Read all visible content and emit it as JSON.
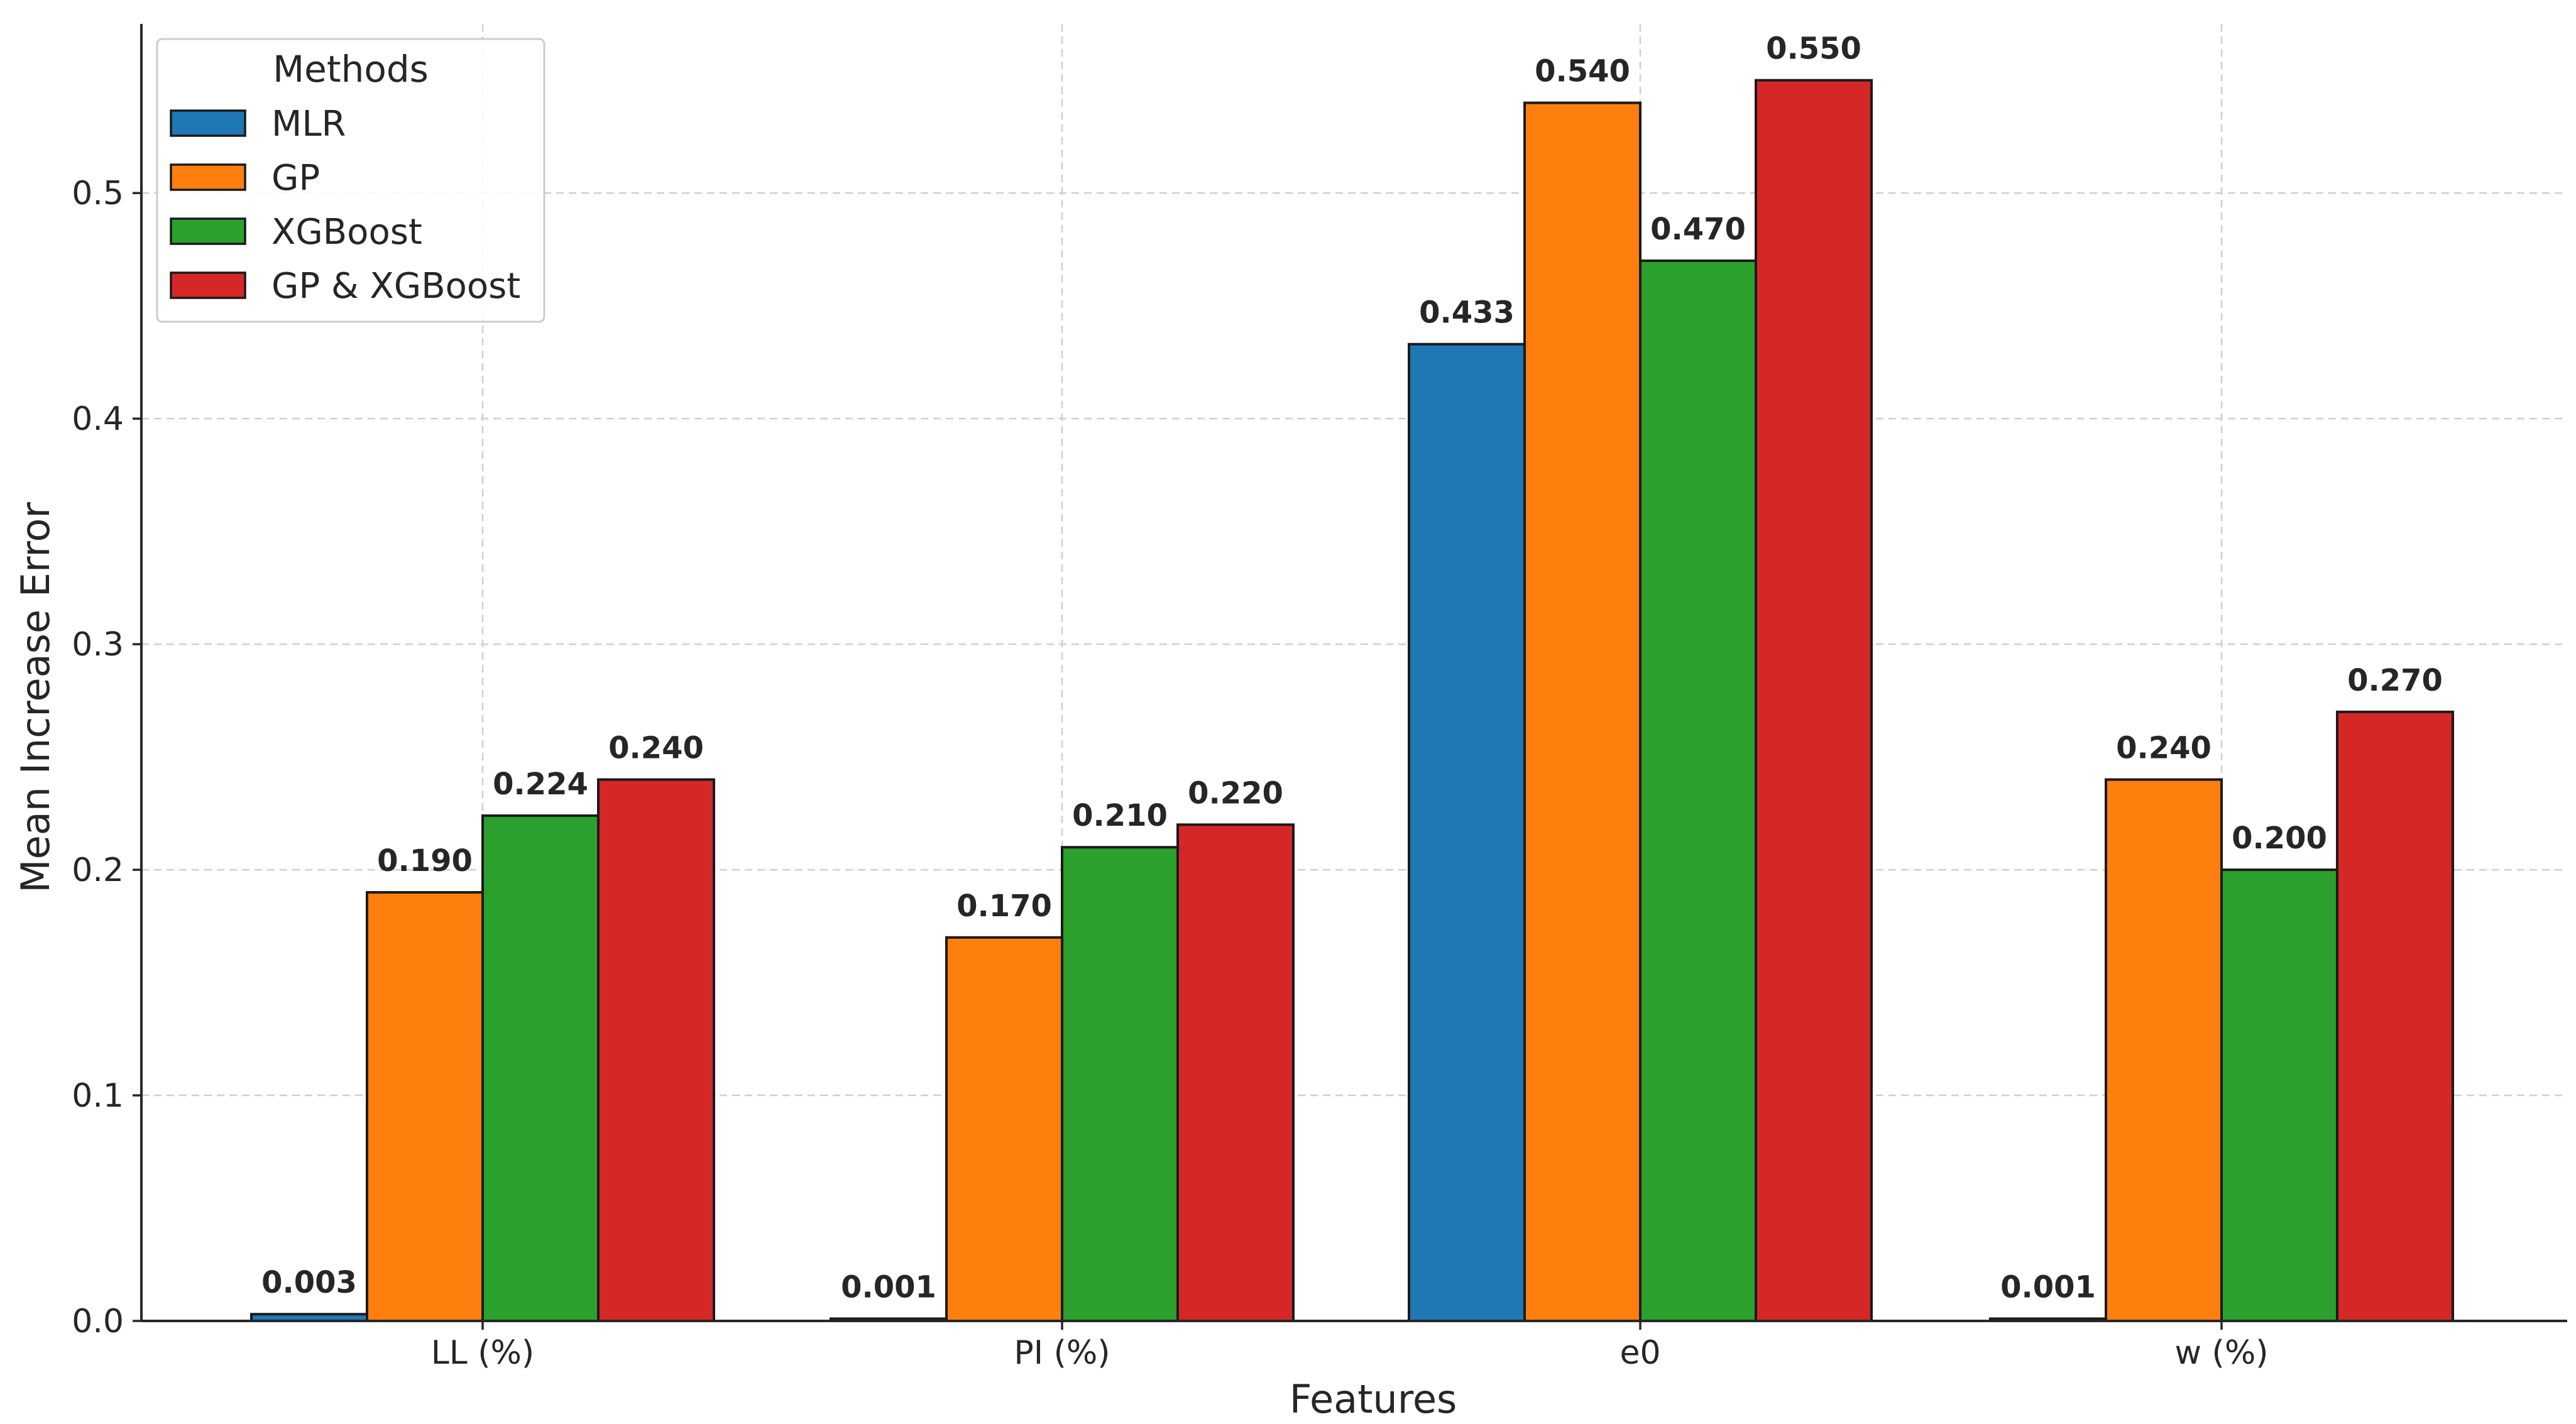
{
  "chart_data": {
    "type": "bar",
    "title": "",
    "xlabel": "Features",
    "ylabel": "Mean Increase Error",
    "categories": [
      "LL (%)",
      "PI (%)",
      "e0",
      "w (%)"
    ],
    "ylim": [
      0,
      0.575
    ],
    "yticks": [
      0.0,
      0.1,
      0.2,
      0.3,
      0.4,
      0.5
    ],
    "ytick_labels": [
      "0.0",
      "0.1",
      "0.2",
      "0.3",
      "0.4",
      "0.5"
    ],
    "grid": true,
    "legend": {
      "title": "Methods",
      "placement": "top-left"
    },
    "series": [
      {
        "name": "MLR",
        "color": "#1f77b4",
        "values": [
          0.003,
          0.001,
          0.433,
          0.001
        ],
        "labels": [
          "0.003",
          "0.001",
          "0.433",
          "0.001"
        ]
      },
      {
        "name": "GP",
        "color": "#ff7f0e",
        "values": [
          0.19,
          0.17,
          0.54,
          0.24
        ],
        "labels": [
          "0.190",
          "0.170",
          "0.540",
          "0.240"
        ]
      },
      {
        "name": "XGBoost",
        "color": "#2ca02c",
        "values": [
          0.224,
          0.21,
          0.47,
          0.2
        ],
        "labels": [
          "0.224",
          "0.210",
          "0.470",
          "0.200"
        ]
      },
      {
        "name": "GP & XGBoost",
        "color": "#d62728",
        "values": [
          0.24,
          0.22,
          0.55,
          0.27
        ],
        "labels": [
          "0.240",
          "0.220",
          "0.550",
          "0.270"
        ]
      }
    ]
  }
}
